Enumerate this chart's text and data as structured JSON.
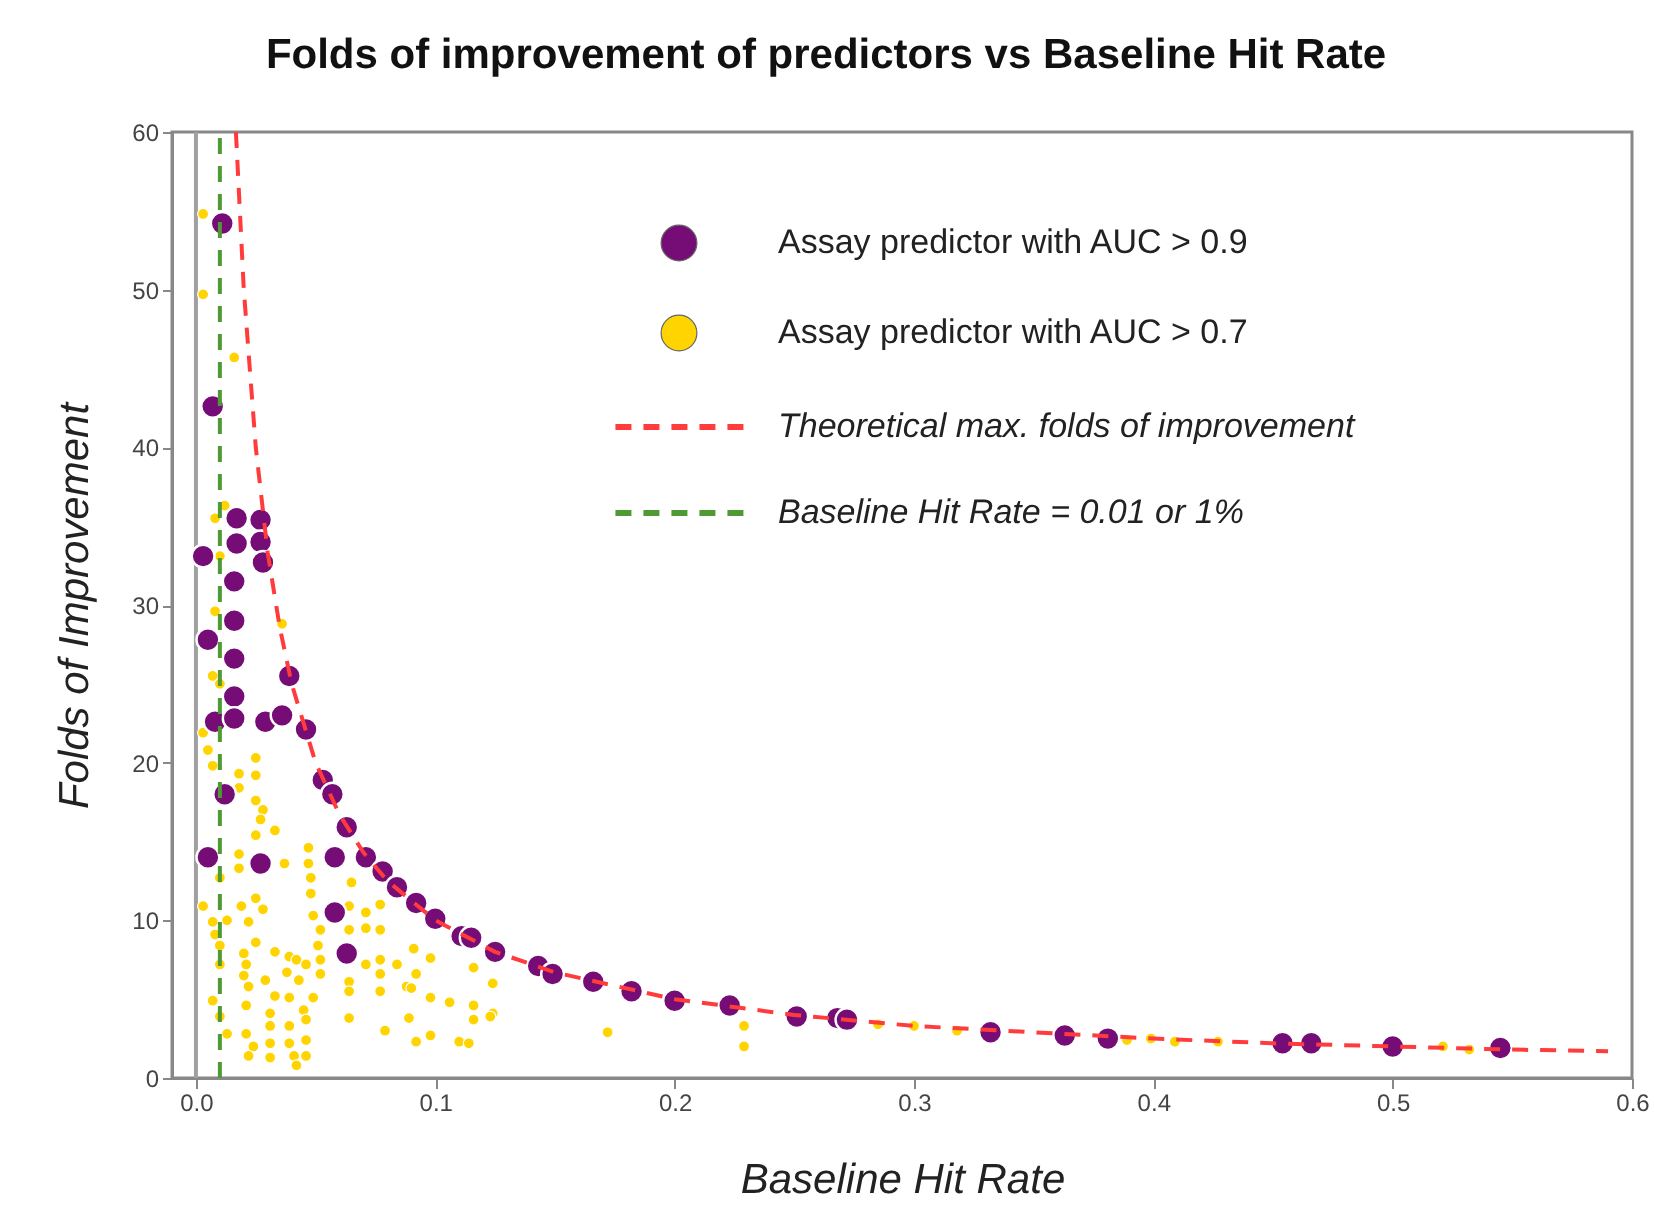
{
  "chart_data": {
    "type": "scatter",
    "title": "Folds of improvement of predictors vs Baseline Hit Rate",
    "xlabel": "Baseline Hit Rate",
    "ylabel": "Folds of Improvement",
    "xlim": [
      -0.01,
      0.6
    ],
    "ylim": [
      0,
      60
    ],
    "xticks": [
      {
        "value": 0,
        "label": "0.0"
      },
      0.1,
      0.2,
      0.3,
      0.4,
      0.5,
      0.6
    ],
    "yticks": [
      0,
      10,
      20,
      30,
      40,
      50,
      60
    ],
    "grid": false,
    "legend": "top right",
    "series": [
      {
        "name": "Assay predictor with AUC > 0.9",
        "marker": "circle",
        "color": "#760c76",
        "x": [
          0.011,
          0.007,
          0.017,
          0.027,
          0.017,
          0.027,
          0.003,
          0.028,
          0.016,
          0.005,
          0.016,
          0.016,
          0.039,
          0.016,
          0.008,
          0.016,
          0.029,
          0.036,
          0.046,
          0.053,
          0.057,
          0.012,
          0.063,
          0.005,
          0.027,
          0.058,
          0.071,
          0.078,
          0.084,
          0.092,
          0.1,
          0.058,
          0.111,
          0.115,
          0.063,
          0.125,
          0.143,
          0.149,
          0.166,
          0.182,
          0.2,
          0.223,
          0.251,
          0.268,
          0.272,
          0.332,
          0.363,
          0.381,
          0.454,
          0.466,
          0.5,
          0.545
        ],
        "values": [
          54.2,
          42.6,
          35.5,
          35.4,
          33.9,
          34.0,
          33.1,
          32.7,
          31.5,
          27.8,
          29.0,
          26.6,
          25.5,
          24.2,
          22.6,
          22.8,
          22.6,
          23.0,
          22.1,
          18.9,
          18.0,
          18.0,
          15.9,
          14.0,
          13.6,
          14.0,
          14.0,
          13.1,
          12.1,
          11.1,
          10.1,
          10.5,
          9.0,
          8.9,
          7.9,
          8.0,
          7.1,
          6.6,
          6.1,
          5.5,
          4.9,
          4.6,
          3.9,
          3.8,
          3.7,
          2.9,
          2.7,
          2.5,
          2.2,
          2.2,
          2.0,
          1.9
        ]
      },
      {
        "name": "Assay predictor with AUC > 0.7",
        "marker": "circle",
        "color": "#ffd400",
        "x": [
          0.003,
          0.003,
          0.016,
          0.012,
          0.008,
          0.01,
          0.008,
          0.036,
          0.007,
          0.01,
          0.003,
          0.005,
          0.007,
          0.025,
          0.025,
          0.018,
          0.018,
          0.025,
          0.028,
          0.027,
          0.033,
          0.025,
          0.047,
          0.047,
          0.037,
          0.018,
          0.01,
          0.048,
          0.018,
          0.065,
          0.048,
          0.025,
          0.019,
          0.003,
          0.028,
          0.049,
          0.064,
          0.071,
          0.077,
          0.007,
          0.013,
          0.022,
          0.052,
          0.064,
          0.071,
          0.077,
          0.008,
          0.01,
          0.025,
          0.02,
          0.033,
          0.039,
          0.051,
          0.091,
          0.098,
          0.01,
          0.021,
          0.042,
          0.046,
          0.052,
          0.071,
          0.077,
          0.084,
          0.116,
          0.124,
          0.092,
          0.02,
          0.029,
          0.038,
          0.043,
          0.052,
          0.064,
          0.077,
          0.088,
          0.022,
          0.007,
          0.033,
          0.039,
          0.049,
          0.064,
          0.077,
          0.09,
          0.098,
          0.106,
          0.116,
          0.116,
          0.124,
          0.01,
          0.021,
          0.031,
          0.045,
          0.064,
          0.079,
          0.089,
          0.013,
          0.021,
          0.031,
          0.039,
          0.046,
          0.024,
          0.031,
          0.039,
          0.046,
          0.092,
          0.098,
          0.11,
          0.114,
          0.022,
          0.031,
          0.041,
          0.046,
          0.042,
          0.123,
          0.172,
          0.229,
          0.229,
          0.285,
          0.3,
          0.318,
          0.389,
          0.399,
          0.409,
          0.427,
          0.521,
          0.532
        ],
        "values": [
          54.8,
          49.7,
          45.7,
          36.3,
          35.5,
          33.1,
          29.6,
          28.8,
          25.5,
          25.0,
          21.9,
          20.8,
          19.8,
          20.3,
          19.2,
          19.3,
          18.4,
          17.6,
          17.0,
          16.4,
          15.7,
          15.4,
          14.6,
          13.6,
          13.6,
          14.2,
          12.7,
          12.7,
          13.3,
          12.4,
          11.7,
          11.4,
          10.9,
          10.9,
          10.7,
          10.3,
          10.9,
          10.5,
          11.0,
          9.9,
          10.0,
          9.9,
          9.4,
          9.4,
          9.5,
          9.4,
          9.1,
          8.4,
          8.6,
          7.9,
          8.0,
          7.7,
          8.4,
          8.2,
          7.6,
          7.2,
          7.2,
          7.5,
          7.2,
          7.5,
          7.2,
          7.5,
          7.2,
          7.0,
          6.0,
          6.6,
          6.5,
          6.2,
          6.7,
          6.2,
          6.6,
          6.1,
          6.6,
          5.8,
          5.8,
          4.9,
          5.2,
          5.1,
          5.1,
          5.5,
          5.5,
          5.7,
          5.1,
          4.8,
          4.6,
          3.7,
          4.1,
          3.9,
          4.6,
          4.1,
          4.3,
          3.8,
          3.0,
          3.8,
          2.8,
          2.8,
          3.3,
          3.3,
          3.7,
          2.0,
          2.2,
          2.2,
          2.4,
          2.3,
          2.7,
          2.3,
          2.2,
          1.4,
          1.3,
          1.4,
          1.4,
          0.8,
          3.9,
          2.9,
          3.3,
          2.0,
          3.4,
          3.3,
          3.0,
          2.4,
          2.5,
          2.3,
          2.3,
          2.0,
          1.8
        ]
      },
      {
        "name": "Theoretical max. folds of improvement",
        "type": "line",
        "marker": "none",
        "line_style": "dashed",
        "color": "#ff3b3b",
        "x": [
          0.0167,
          0.02,
          0.025,
          0.03,
          0.035,
          0.04,
          0.05,
          0.06,
          0.07,
          0.08,
          0.1,
          0.125,
          0.15,
          0.2,
          0.25,
          0.3,
          0.35,
          0.4,
          0.45,
          0.5,
          0.55,
          0.59
        ],
        "values": [
          60,
          50,
          40,
          33.3,
          28.6,
          25,
          20,
          16.7,
          14.3,
          12.5,
          10,
          8,
          6.7,
          5,
          4,
          3.3,
          2.9,
          2.5,
          2.2,
          2,
          1.8,
          1.7
        ]
      },
      {
        "name": "Baseline Hit Rate = 0.01 or 1%",
        "type": "line",
        "marker": "none",
        "line_style": "dashed",
        "color": "#4f9a35",
        "x": [
          0.01,
          0.01
        ],
        "values": [
          0,
          60
        ]
      }
    ],
    "ref_lines": [
      {
        "axis": "x",
        "value": 0,
        "color": "#a0a0a0",
        "line_style": "solid"
      }
    ]
  }
}
